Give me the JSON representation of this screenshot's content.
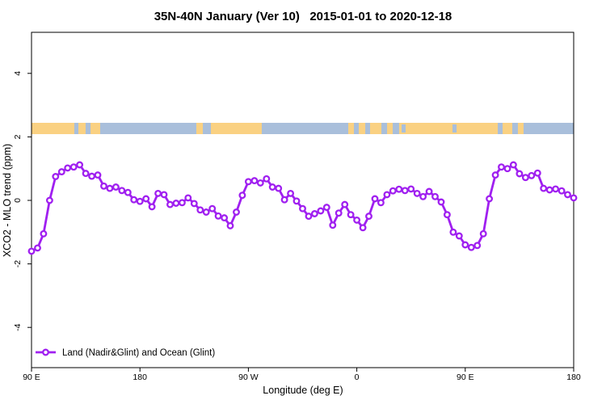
{
  "page": {
    "background": "#ffffff"
  },
  "chart_data": {
    "type": "line",
    "title": "35N-40N January (Ver 10)   2015-01-01 to 2020-12-18",
    "xlabel": "Longitude (deg E)",
    "ylabel": "XCO2 - MLO trend (ppm)",
    "x_axis_deg_span": [
      90,
      540
    ],
    "ylim": [
      -5.3,
      5.3
    ],
    "grid": false,
    "x_ticks": [
      {
        "deg": 90,
        "label": "90 E"
      },
      {
        "deg": 180,
        "label": "180"
      },
      {
        "deg": 270,
        "label": "90 W"
      },
      {
        "deg": 360,
        "label": "0"
      },
      {
        "deg": 450,
        "label": "90 E"
      },
      {
        "deg": 540,
        "label": "180"
      }
    ],
    "y_ticks": [
      {
        "value": -4,
        "label": "-4"
      },
      {
        "value": -2,
        "label": "-2"
      },
      {
        "value": 0,
        "label": "0"
      },
      {
        "value": 2,
        "label": "2"
      },
      {
        "value": 4,
        "label": "4"
      }
    ],
    "legend": {
      "position": "bottom-left",
      "entries": [
        {
          "label": "Land (Nadir&Glint) and Ocean (Glint)",
          "color": "#A020F0",
          "marker": "open-circle"
        }
      ]
    },
    "series": [
      {
        "name": "Land (Nadir&Glint) and Ocean (Glint)",
        "color": "#A020F0",
        "marker": "open-circle",
        "marker_fill": "#ffffff",
        "points": [
          [
            90,
            -1.6
          ],
          [
            95,
            -1.5
          ],
          [
            100,
            -1.05
          ],
          [
            105,
            0.0
          ],
          [
            110,
            0.75
          ],
          [
            115,
            0.9
          ],
          [
            120,
            1.02
          ],
          [
            125,
            1.05
          ],
          [
            130,
            1.12
          ],
          [
            135,
            0.85
          ],
          [
            140,
            0.76
          ],
          [
            145,
            0.8
          ],
          [
            150,
            0.45
          ],
          [
            155,
            0.38
          ],
          [
            160,
            0.42
          ],
          [
            165,
            0.31
          ],
          [
            170,
            0.25
          ],
          [
            175,
            0.02
          ],
          [
            180,
            -0.03
          ],
          [
            185,
            0.05
          ],
          [
            190,
            -0.2
          ],
          [
            195,
            0.22
          ],
          [
            200,
            0.18
          ],
          [
            205,
            -0.13
          ],
          [
            210,
            -0.09
          ],
          [
            215,
            -0.07
          ],
          [
            220,
            0.08
          ],
          [
            225,
            -0.1
          ],
          [
            230,
            -0.3
          ],
          [
            235,
            -0.37
          ],
          [
            240,
            -0.26
          ],
          [
            245,
            -0.49
          ],
          [
            250,
            -0.55
          ],
          [
            255,
            -0.8
          ],
          [
            260,
            -0.37
          ],
          [
            265,
            0.16
          ],
          [
            270,
            0.59
          ],
          [
            275,
            0.62
          ],
          [
            280,
            0.55
          ],
          [
            285,
            0.68
          ],
          [
            290,
            0.42
          ],
          [
            295,
            0.38
          ],
          [
            300,
            0.02
          ],
          [
            305,
            0.22
          ],
          [
            310,
            -0.02
          ],
          [
            315,
            -0.26
          ],
          [
            320,
            -0.5
          ],
          [
            325,
            -0.42
          ],
          [
            330,
            -0.33
          ],
          [
            335,
            -0.22
          ],
          [
            340,
            -0.78
          ],
          [
            345,
            -0.4
          ],
          [
            350,
            -0.13
          ],
          [
            355,
            -0.45
          ],
          [
            360,
            -0.62
          ],
          [
            365,
            -0.86
          ],
          [
            370,
            -0.5
          ],
          [
            375,
            0.05
          ],
          [
            380,
            -0.07
          ],
          [
            385,
            0.18
          ],
          [
            390,
            0.3
          ],
          [
            395,
            0.35
          ],
          [
            400,
            0.31
          ],
          [
            405,
            0.36
          ],
          [
            410,
            0.22
          ],
          [
            415,
            0.12
          ],
          [
            420,
            0.28
          ],
          [
            425,
            0.12
          ],
          [
            430,
            -0.05
          ],
          [
            435,
            -0.45
          ],
          [
            440,
            -1.0
          ],
          [
            445,
            -1.12
          ],
          [
            450,
            -1.4
          ],
          [
            455,
            -1.48
          ],
          [
            460,
            -1.42
          ],
          [
            465,
            -1.05
          ],
          [
            470,
            0.05
          ],
          [
            475,
            0.8
          ],
          [
            480,
            1.05
          ],
          [
            485,
            1.0
          ],
          [
            490,
            1.12
          ],
          [
            495,
            0.84
          ],
          [
            500,
            0.72
          ],
          [
            505,
            0.78
          ],
          [
            510,
            0.86
          ],
          [
            515,
            0.38
          ],
          [
            520,
            0.33
          ],
          [
            525,
            0.36
          ],
          [
            530,
            0.3
          ],
          [
            535,
            0.18
          ],
          [
            540,
            0.08
          ]
        ]
      }
    ],
    "surface_type_band": {
      "value": 2.26,
      "ocean_color": "#A9BFDB",
      "land_color": "#FAD182",
      "land_segments_deg": [
        [
          90,
          125.5
        ],
        [
          128.9,
          134.9
        ],
        [
          139,
          147
        ],
        [
          226.8,
          232.2
        ],
        [
          238.9,
          281.1
        ],
        [
          352.9,
          357.6
        ],
        [
          361.6,
          367
        ],
        [
          371,
          380.4
        ],
        [
          385.1,
          389.8
        ],
        [
          395.1,
          477
        ],
        [
          481,
          489
        ],
        [
          493.7,
          498.4
        ]
      ],
      "ocean_speck_segments_deg": [
        [
          397.2,
          400.5
        ],
        [
          439.4,
          442.8
        ]
      ]
    }
  }
}
